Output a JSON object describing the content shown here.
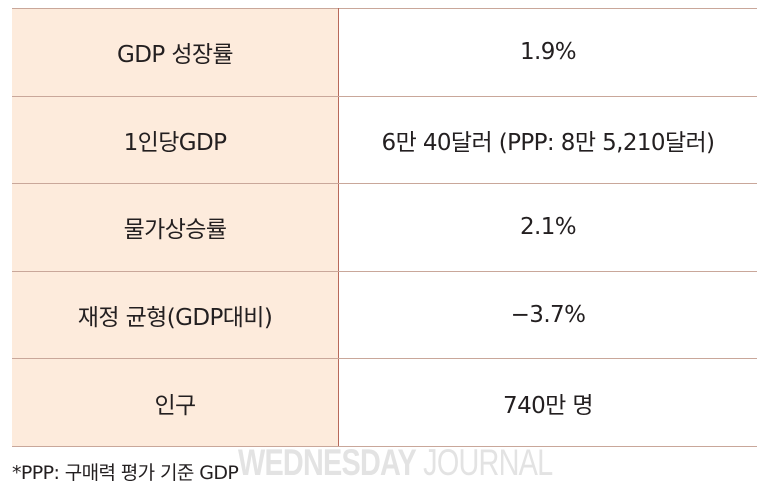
{
  "table": {
    "rows": [
      {
        "label": "GDP 성장률",
        "value": "1.9%"
      },
      {
        "label": "1인당GDP",
        "value": "6만 40달러 (PPP: 8만 5,210달러)"
      },
      {
        "label": "물가상승률",
        "value": "2.1%"
      },
      {
        "label": "재정 균형(GDP대비)",
        "value": "−3.7%"
      },
      {
        "label": "인구",
        "value": "740만 명"
      }
    ]
  },
  "footnote": "*PPP: 구매력 평가 기준 GDP",
  "watermark": {
    "bold": "WEDNESDAY",
    "light": "JOURNAL"
  },
  "colors": {
    "label_background": "#fdebdc",
    "divider": "#b8695a",
    "row_border": "#c9a79a"
  }
}
